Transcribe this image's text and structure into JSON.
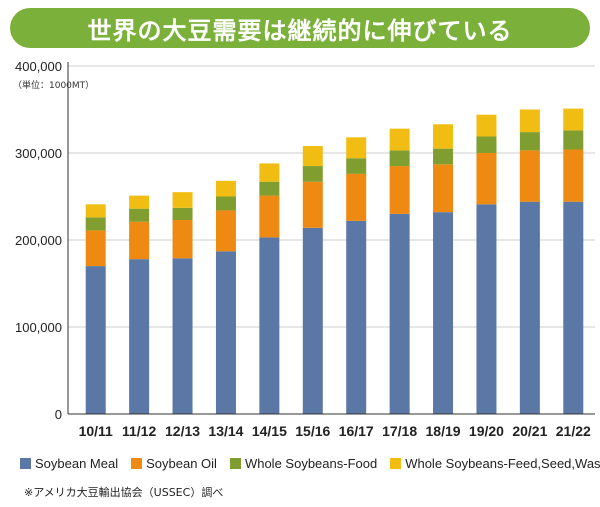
{
  "header": {
    "title": "世界の大豆需要は継続的に伸びている"
  },
  "unit_note": "（単位：1000MT）",
  "source_note": "※アメリカ大豆輸出協会（USSEC）調べ",
  "colors": {
    "title_bg": "#7bb13a",
    "soybean_meal": "#5b77a6",
    "soybean_oil": "#ee8a12",
    "whole_food": "#7f9e2f",
    "whole_feed": "#f2bd12",
    "gridline": "#cfcfcf",
    "axis": "#333333"
  },
  "chart_data": {
    "type": "bar",
    "stacked": true,
    "title": "世界の大豆需要は継続的に伸びている",
    "xlabel": "",
    "ylabel": "",
    "ylim": [
      0,
      400000
    ],
    "yticks": [
      0,
      100000,
      200000,
      300000,
      400000
    ],
    "ytick_labels": [
      "0",
      "100,000",
      "200,000",
      "300,000",
      "400,000"
    ],
    "grid": true,
    "legend_position": "bottom",
    "categories": [
      "10/11",
      "11/12",
      "12/13",
      "13/14",
      "14/15",
      "15/16",
      "16/17",
      "17/18",
      "18/19",
      "19/20",
      "20/21",
      "21/22"
    ],
    "series": [
      {
        "name": "Soybean Meal",
        "color": "#5b77a6",
        "values": [
          170000,
          178000,
          179000,
          187000,
          203000,
          214000,
          222000,
          230000,
          232000,
          241000,
          244000,
          244000
        ]
      },
      {
        "name": "Soybean Oil",
        "color": "#ee8a12",
        "values": [
          41000,
          43000,
          44000,
          47000,
          48000,
          53000,
          54000,
          55000,
          55000,
          59000,
          59000,
          60000
        ]
      },
      {
        "name": "Whole Soybeans-Food",
        "color": "#7f9e2f",
        "values": [
          15000,
          15000,
          14000,
          16000,
          16000,
          18000,
          18000,
          18000,
          18000,
          19000,
          21000,
          22000
        ]
      },
      {
        "name": "Whole Soybeans-Feed,Seed,Waste",
        "color": "#f2bd12",
        "values": [
          15000,
          15000,
          18000,
          18000,
          21000,
          23000,
          24000,
          25000,
          28000,
          25000,
          26000,
          25000
        ]
      }
    ]
  }
}
